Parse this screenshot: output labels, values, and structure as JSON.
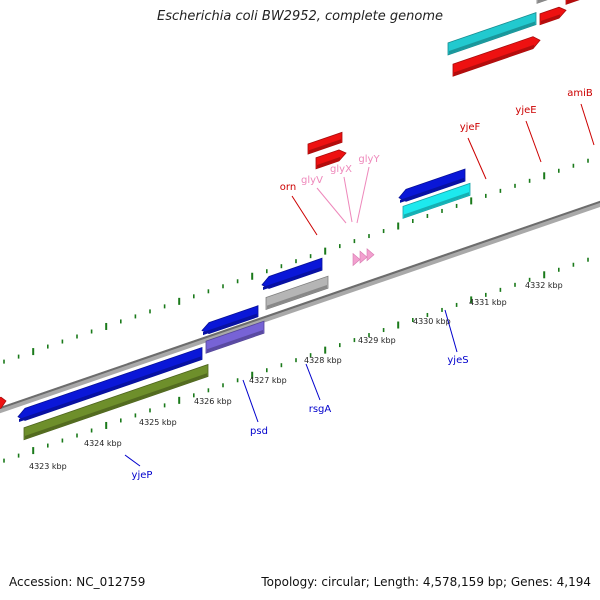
{
  "title": "Escherichia coli BW2952, complete genome",
  "footer": {
    "accession": "Accession: NC_012759",
    "summary": "Topology: circular; Length: 4,578,159 bp; Genes: 4,194"
  },
  "colors": {
    "forward_label": "#cc0000",
    "reverse_label": "#0000cc",
    "trna_label": "#ee88bb",
    "tick": "#1a7a1a",
    "backbone": "#8a8a8a"
  },
  "scale_labels": [
    "4323 kbp",
    "4324 kbp",
    "4325 kbp",
    "4326 kbp",
    "4327 kbp",
    "4328 kbp",
    "4329 kbp",
    "4330 kbp",
    "4331 kbp",
    "4332 kbp"
  ],
  "genes_forward": [
    {
      "name": "orn",
      "color": "#cc0000"
    },
    {
      "name": "yjeF",
      "color": "#cc0000"
    },
    {
      "name": "yjeE",
      "color": "#cc0000"
    },
    {
      "name": "amiB",
      "color": "#cc0000"
    }
  ],
  "genes_trna": [
    {
      "name": "glyV",
      "color": "#ee88bb"
    },
    {
      "name": "glyX",
      "color": "#ee88bb"
    },
    {
      "name": "glyY",
      "color": "#ee88bb"
    }
  ],
  "genes_reverse": [
    {
      "name": "yjeP",
      "color": "#0000cc"
    },
    {
      "name": "psd",
      "color": "#0000cc"
    },
    {
      "name": "rsgA",
      "color": "#0000cc"
    },
    {
      "name": "yjeS",
      "color": "#0000cc"
    }
  ]
}
